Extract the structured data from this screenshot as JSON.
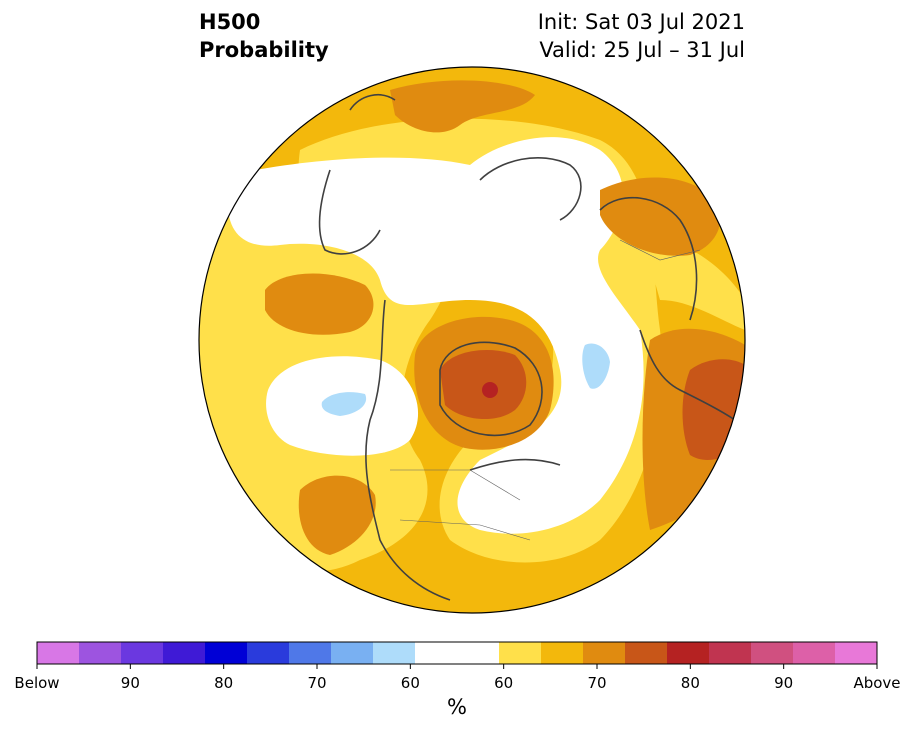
{
  "header": {
    "left_line1": "H500",
    "left_line2": "Probability",
    "right_line1": "Init: Sat 03 Jul 2021",
    "right_line2": "Valid: 25 Jul – 31 Jul"
  },
  "colors": {
    "below_scale": [
      "#d877e6",
      "#9d54e0",
      "#6b38e0",
      "#3f1ad6",
      "#0000d6",
      "#2a3bdc",
      "#4f78e8",
      "#79b0f2",
      "#aedcfa"
    ],
    "neutral": "#ffffff",
    "above_scale": [
      "#ffe04a",
      "#f3b80c",
      "#e08b10",
      "#c85618",
      "#b52222",
      "#c03450",
      "#d05080",
      "#dd60a8",
      "#e878d8"
    ],
    "coastline": "#404040"
  },
  "colorbar": {
    "tick_labels": [
      "Below",
      "90",
      "80",
      "70",
      "60",
      "60",
      "70",
      "80",
      "90",
      "Above"
    ],
    "unit": "%"
  },
  "map": {
    "projection": "north-polar-stereographic",
    "shading": "probability of 500 hPa height category"
  }
}
